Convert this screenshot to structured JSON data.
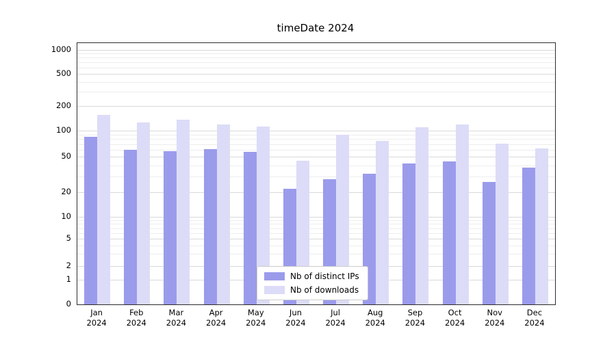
{
  "chart_data": {
    "type": "bar",
    "title": "timeDate 2024",
    "categories": [
      "Jan",
      "Feb",
      "Mar",
      "Apr",
      "May",
      "Jun",
      "Jul",
      "Aug",
      "Sep",
      "Oct",
      "Nov",
      "Dec"
    ],
    "year": "2024",
    "series": [
      {
        "name": "Nb of distinct IPs",
        "color": "#9b9bec",
        "values": [
          85,
          60,
          58,
          61,
          57,
          22,
          28,
          32,
          42,
          44,
          26,
          38
        ]
      },
      {
        "name": "Nb of downloads",
        "color": "#dcdcf8",
        "values": [
          155,
          125,
          137,
          118,
          113,
          45,
          90,
          76,
          110,
          120,
          71,
          62
        ]
      }
    ],
    "yticks": [
      0,
      1,
      2,
      5,
      10,
      20,
      50,
      100,
      200,
      500,
      1000
    ],
    "minor_yticks": [
      3,
      4,
      6,
      7,
      8,
      9,
      30,
      40,
      60,
      70,
      80,
      90,
      300,
      400,
      600,
      700,
      800,
      900
    ],
    "ylim": [
      0,
      1000
    ],
    "yscale": "symlog",
    "grid": "horizontal",
    "legend_position": "bottom-center-inside"
  }
}
